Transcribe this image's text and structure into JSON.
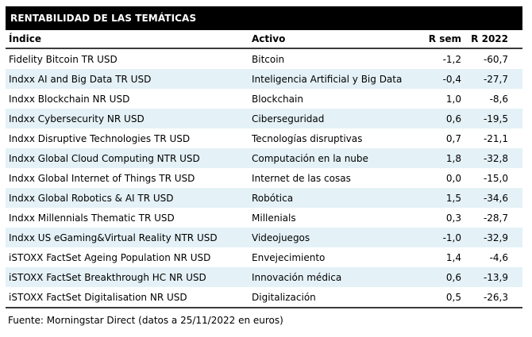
{
  "title": "RENTABILIDAD DE LAS TEMÁTICAS",
  "table": {
    "columns": [
      "Índice",
      "Activo",
      "R sem",
      "R 2022"
    ],
    "rows": [
      {
        "indice": "Fidelity Bitcoin TR USD",
        "activo": "Bitcoin",
        "r_sem": "-1,2",
        "r_2022": "-60,7"
      },
      {
        "indice": "Indxx AI and Big Data TR USD",
        "activo": "Inteligencia Artificial y Big Data",
        "r_sem": "-0,4",
        "r_2022": "-27,7"
      },
      {
        "indice": "Indxx Blockchain NR USD",
        "activo": "Blockchain",
        "r_sem": "1,0",
        "r_2022": "-8,6"
      },
      {
        "indice": "Indxx Cybersecurity NR USD",
        "activo": "Ciberseguridad",
        "r_sem": "0,6",
        "r_2022": "-19,5"
      },
      {
        "indice": "Indxx Disruptive Technologies TR USD",
        "activo": "Tecnologías disruptivas",
        "r_sem": "0,7",
        "r_2022": "-21,1"
      },
      {
        "indice": "Indxx Global Cloud Computing NTR USD",
        "activo": "Computación en la nube",
        "r_sem": "1,8",
        "r_2022": "-32,8"
      },
      {
        "indice": "Indxx Global Internet of Things TR USD",
        "activo": "Internet de las cosas",
        "r_sem": "0,0",
        "r_2022": "-15,0"
      },
      {
        "indice": "Indxx Global Robotics & AI TR USD",
        "activo": "Robótica",
        "r_sem": "1,5",
        "r_2022": "-34,6"
      },
      {
        "indice": "Indxx Millennials Thematic TR USD",
        "activo": "Millenials",
        "r_sem": "0,3",
        "r_2022": "-28,7"
      },
      {
        "indice": "Indxx US eGaming&Virtual Reality NTR USD",
        "activo": "Videojuegos",
        "r_sem": "-1,0",
        "r_2022": "-32,9"
      },
      {
        "indice": "iSTOXX FactSet Ageing Population NR USD",
        "activo": "Envejecimiento",
        "r_sem": "1,4",
        "r_2022": "-4,6"
      },
      {
        "indice": "iSTOXX FactSet Breakthrough HC NR USD",
        "activo": "Innovación médica",
        "r_sem": "0,6",
        "r_2022": "-13,9"
      },
      {
        "indice": "iSTOXX FactSet Digitalisation NR USD",
        "activo": "Digitalización",
        "r_sem": "0,5",
        "r_2022": "-26,3"
      }
    ]
  },
  "footer": "Fuente: Morningstar Direct (datos a 25/11/2022 en euros)",
  "colors": {
    "title_bg": "#000000",
    "stripe": "#e4f1f7",
    "rule": "#3b3b3b"
  },
  "chart_data": {
    "type": "table",
    "title": "RENTABILIDAD DE LAS TEMÁTICAS",
    "columns": [
      "Índice",
      "Activo",
      "R sem",
      "R 2022"
    ],
    "r_sem_values": [
      -1.2,
      -0.4,
      1.0,
      0.6,
      0.7,
      1.8,
      0.0,
      1.5,
      0.3,
      -1.0,
      1.4,
      0.6,
      0.5
    ],
    "r_2022_values": [
      -60.7,
      -27.7,
      -8.6,
      -19.5,
      -21.1,
      -32.8,
      -15.0,
      -34.6,
      -28.7,
      -32.9,
      -4.6,
      -13.9,
      -26.3
    ]
  }
}
